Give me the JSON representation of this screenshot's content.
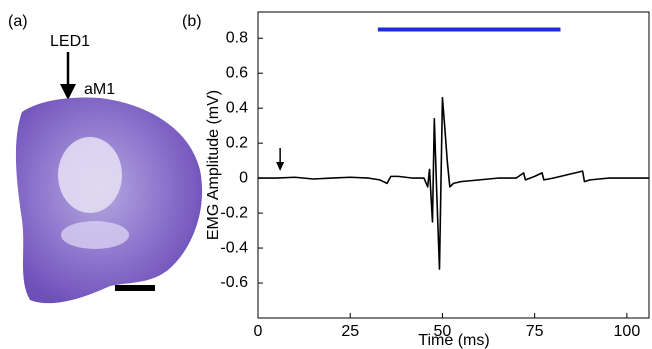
{
  "panel_a": {
    "label": "(a)",
    "annotations": [
      "LED1",
      "aM1"
    ]
  },
  "chart_data": {
    "type": "line",
    "panel_label": "(b)",
    "xlabel": "Time (ms)",
    "ylabel": "EMG Amplitude (mV)",
    "xlim": [
      0,
      106
    ],
    "ylim": [
      -0.8,
      0.95
    ],
    "xticks": [
      0,
      25,
      50,
      75,
      100
    ],
    "yticks": [
      -0.6,
      -0.4,
      -0.2,
      0,
      0.2,
      0.4,
      0.6,
      0.8
    ],
    "color": "#000000",
    "x": [
      0,
      5,
      10,
      15,
      20,
      25,
      30,
      33,
      35,
      36,
      38,
      42,
      45,
      46,
      46.5,
      47.3,
      47.8,
      48.4,
      49.2,
      50,
      50.6,
      51.3,
      52,
      53,
      55,
      60,
      65,
      70,
      72,
      72.5,
      75,
      77,
      77.5,
      80,
      88,
      88.5,
      90,
      95,
      100,
      106
    ],
    "values": [
      0,
      0,
      0.005,
      -0.005,
      0,
      0.005,
      0,
      -0.01,
      -0.03,
      0.01,
      0.01,
      0,
      0,
      -0.05,
      0.05,
      -0.25,
      0.34,
      -0.05,
      -0.52,
      0.46,
      0.3,
      0.1,
      -0.05,
      -0.03,
      -0.02,
      -0.01,
      0,
      0,
      0.03,
      -0.01,
      0.01,
      0.03,
      -0.01,
      0,
      0.04,
      -0.02,
      -0.01,
      0,
      0,
      0
    ],
    "stim_bar": {
      "x": [
        32.5,
        82
      ],
      "y": 0.85,
      "color": "#1f2bd6"
    },
    "arrow_x": 6
  }
}
